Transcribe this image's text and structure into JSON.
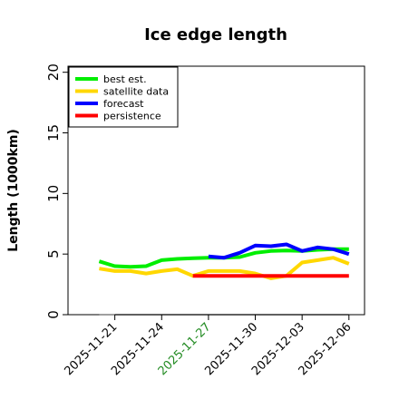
{
  "chart_data": {
    "type": "line",
    "title": "Ice edge length",
    "ylabel": "Length (1000km)",
    "ylim": [
      0,
      20.5
    ],
    "yticks": [
      0,
      5,
      10,
      15,
      20
    ],
    "xlim": [
      "2025-11-18",
      "2025-12-07"
    ],
    "xticks": [
      "2025-11-21",
      "2025-11-24",
      "2025-11-27",
      "2025-11-30",
      "2025-12-03",
      "2025-12-06"
    ],
    "xtick_colors": [
      "#000000",
      "#000000",
      "#228b22",
      "#000000",
      "#000000",
      "#000000"
    ],
    "legend_position": "top-left",
    "series": [
      {
        "name": "best est.",
        "color": "#00ee00",
        "x": [
          "2025-11-20",
          "2025-11-21",
          "2025-11-22",
          "2025-11-23",
          "2025-11-24",
          "2025-11-25",
          "2025-11-26",
          "2025-11-27",
          "2025-11-28",
          "2025-11-29",
          "2025-11-30",
          "2025-12-01",
          "2025-12-02",
          "2025-12-03",
          "2025-12-04",
          "2025-12-05",
          "2025-12-06"
        ],
        "values": [
          4.4,
          4.0,
          3.95,
          4.0,
          4.5,
          4.6,
          4.65,
          4.7,
          4.7,
          4.75,
          5.1,
          5.25,
          5.3,
          5.25,
          5.35,
          5.4,
          5.4
        ]
      },
      {
        "name": "satellite data",
        "color": "#ffd700",
        "x": [
          "2025-11-20",
          "2025-11-21",
          "2025-11-22",
          "2025-11-23",
          "2025-11-24",
          "2025-11-25",
          "2025-11-26",
          "2025-11-27",
          "2025-11-28",
          "2025-11-29",
          "2025-11-30",
          "2025-12-01",
          "2025-12-02",
          "2025-12-03",
          "2025-12-04",
          "2025-12-05",
          "2025-12-06"
        ],
        "values": [
          3.8,
          3.6,
          3.6,
          3.4,
          3.6,
          3.75,
          3.2,
          3.6,
          3.6,
          3.6,
          3.4,
          3.0,
          3.2,
          4.3,
          4.5,
          4.7,
          4.2
        ]
      },
      {
        "name": "forecast",
        "color": "#0000ff",
        "x": [
          "2025-11-27",
          "2025-11-28",
          "2025-11-29",
          "2025-11-30",
          "2025-12-01",
          "2025-12-02",
          "2025-12-03",
          "2025-12-04",
          "2025-12-05",
          "2025-12-06"
        ],
        "values": [
          4.8,
          4.7,
          5.1,
          5.7,
          5.65,
          5.8,
          5.25,
          5.55,
          5.4,
          5.0
        ]
      },
      {
        "name": "persistence",
        "color": "#ff0000",
        "x": [
          "2025-11-26",
          "2025-12-06"
        ],
        "values": [
          3.2,
          3.2
        ]
      }
    ],
    "baseline": {
      "color": "#808080",
      "value": 0,
      "x": [
        "2025-11-20",
        "2025-12-06"
      ]
    }
  }
}
